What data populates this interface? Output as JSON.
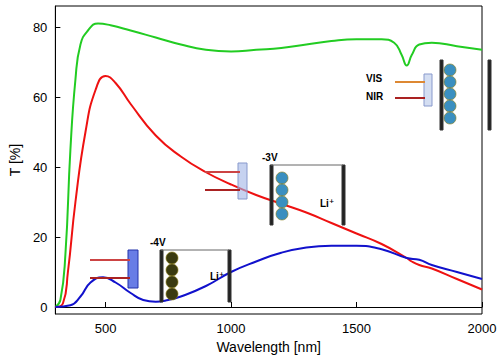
{
  "chart_data": {
    "type": "line",
    "x_label": "Wavelength [nm]",
    "y_label": "T [%]",
    "xlim": [
      300,
      2000
    ],
    "xticks": [
      500,
      1000,
      1500,
      2000
    ],
    "ylim": [
      -2,
      86
    ],
    "yticks": [
      0,
      20,
      40,
      60,
      80
    ],
    "grid": false,
    "annotations": [
      "-4V",
      "Li⁺",
      "-3V",
      "Li⁺",
      "VIS",
      "NIR"
    ],
    "series": [
      {
        "color": "#22cc22",
        "x": [
          300,
          320,
          340,
          360,
          380,
          400,
          430,
          470,
          520,
          600,
          700,
          800,
          900,
          1000,
          1100,
          1200,
          1300,
          1400,
          1500,
          1600,
          1650,
          1680,
          1700,
          1720,
          1750,
          1800,
          1900,
          2000
        ],
        "values": [
          0,
          2,
          15,
          45,
          65,
          75,
          79,
          81,
          80.5,
          79,
          77,
          75,
          73.5,
          73,
          73.5,
          74,
          75,
          76,
          76.5,
          76.5,
          75.5,
          72,
          69,
          72,
          75,
          75.5,
          74.5,
          73.5
        ]
      },
      {
        "color": "#ee1111",
        "x": [
          300,
          330,
          350,
          380,
          420,
          460,
          500,
          540,
          600,
          700,
          800,
          900,
          1000,
          1100,
          1200,
          1300,
          1400,
          1500,
          1600,
          1700,
          1720,
          1750,
          1800,
          1900,
          2000
        ],
        "values": [
          0,
          1,
          10,
          30,
          50,
          62,
          66,
          64,
          58,
          49,
          43,
          38.5,
          35,
          32,
          29.5,
          27,
          24,
          21,
          18,
          14,
          13,
          12,
          11,
          8,
          5
        ]
      },
      {
        "color": "#1111cc",
        "x": [
          300,
          360,
          400,
          440,
          490,
          540,
          600,
          650,
          700,
          750,
          800,
          900,
          1000,
          1100,
          1200,
          1300,
          1400,
          1500,
          1600,
          1700,
          1750,
          1800,
          1900,
          2000
        ],
        "values": [
          0,
          0.5,
          3,
          7,
          8.5,
          7,
          4,
          2,
          1.5,
          2,
          3,
          6,
          10,
          13,
          15.5,
          17,
          17.5,
          17.5,
          16.5,
          14,
          13.5,
          12,
          10,
          8
        ]
      }
    ]
  }
}
